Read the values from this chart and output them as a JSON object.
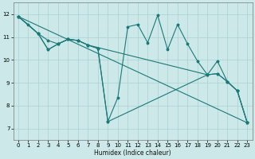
{
  "xlabel": "Humidex (Indice chaleur)",
  "xlim": [
    -0.5,
    23.5
  ],
  "ylim": [
    6.5,
    12.5
  ],
  "xticks": [
    0,
    1,
    2,
    3,
    4,
    5,
    6,
    7,
    8,
    9,
    10,
    11,
    12,
    13,
    14,
    15,
    16,
    17,
    18,
    19,
    20,
    21,
    22,
    23
  ],
  "yticks": [
    7,
    8,
    9,
    10,
    11,
    12
  ],
  "bg_color": "#cce8e8",
  "line_color": "#1a7a78",
  "grid_color": "#aad0d0",
  "lines": [
    {
      "x": [
        0,
        23
      ],
      "y": [
        11.9,
        7.25
      ]
    },
    {
      "x": [
        0,
        2,
        3,
        4,
        5,
        6,
        7,
        19,
        20,
        21,
        22,
        23
      ],
      "y": [
        11.9,
        11.15,
        10.45,
        10.7,
        10.9,
        10.85,
        10.65,
        9.35,
        9.4,
        9.05,
        8.65,
        7.25
      ]
    },
    {
      "x": [
        0,
        2,
        3,
        4,
        5,
        6,
        7,
        8,
        9,
        19,
        20,
        21,
        22,
        23
      ],
      "y": [
        11.9,
        11.15,
        10.45,
        10.7,
        10.9,
        10.85,
        10.65,
        10.5,
        7.3,
        9.35,
        9.4,
        9.05,
        8.65,
        7.25
      ]
    },
    {
      "x": [
        0,
        1,
        2,
        3,
        4,
        5,
        6,
        7,
        8,
        9,
        10,
        11,
        12,
        13,
        14,
        15,
        16,
        17,
        18,
        19,
        20,
        21,
        22,
        23
      ],
      "y": [
        11.9,
        11.55,
        11.15,
        10.85,
        10.7,
        10.9,
        10.85,
        10.65,
        10.5,
        7.3,
        8.35,
        11.45,
        11.55,
        10.75,
        11.95,
        10.45,
        11.55,
        10.7,
        9.95,
        9.35,
        9.95,
        9.05,
        8.65,
        7.25
      ]
    }
  ]
}
